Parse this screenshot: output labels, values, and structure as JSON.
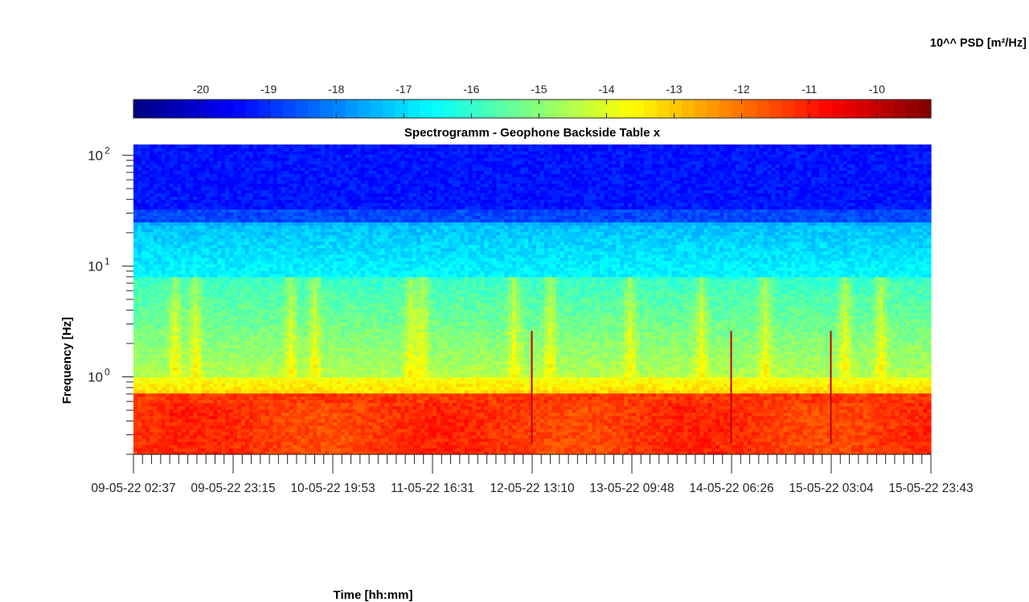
{
  "chart_data": {
    "type": "heatmap",
    "title": "Spectrogramm - Geophone Backside Table x",
    "xlabel": "Time [hh:mm]",
    "ylabel": "Frequency [Hz]",
    "y_scale": "log",
    "ylim": [
      0.2,
      125
    ],
    "y_ticks": [
      {
        "value": 1,
        "base": "10",
        "exp": "0"
      },
      {
        "value": 10,
        "base": "10",
        "exp": "1"
      },
      {
        "value": 100,
        "base": "10",
        "exp": "2"
      }
    ],
    "x_tick_labels": [
      "09-05-22 02:37",
      "09-05-22 23:15",
      "10-05-22 19:53",
      "11-05-22 16:31",
      "12-05-22 13:10",
      "13-05-22 09:48",
      "14-05-22 06:26",
      "15-05-22 03:04",
      "15-05-22 23:43"
    ],
    "xlim": [
      "09-05-22 02:37",
      "15-05-22 23:43"
    ],
    "colorbar": {
      "label": "10^^ PSD [m²/Hz]",
      "colormap": "jet",
      "range": [
        -21,
        -9.2
      ],
      "ticks": [
        -20,
        -19,
        -18,
        -17,
        -16,
        -15,
        -14,
        -13,
        -12,
        -11,
        -10
      ]
    },
    "description_values": {
      "low_frequency_band_hz": [
        0.2,
        0.7
      ],
      "low_frequency_level": -11.3,
      "mid_frequency_level": -14.5,
      "high_frequency_level": -19.3,
      "transient_events": [
        "12-05-22 13:10",
        "14-05-22 06:26",
        "15-05-22 03:04"
      ]
    }
  }
}
